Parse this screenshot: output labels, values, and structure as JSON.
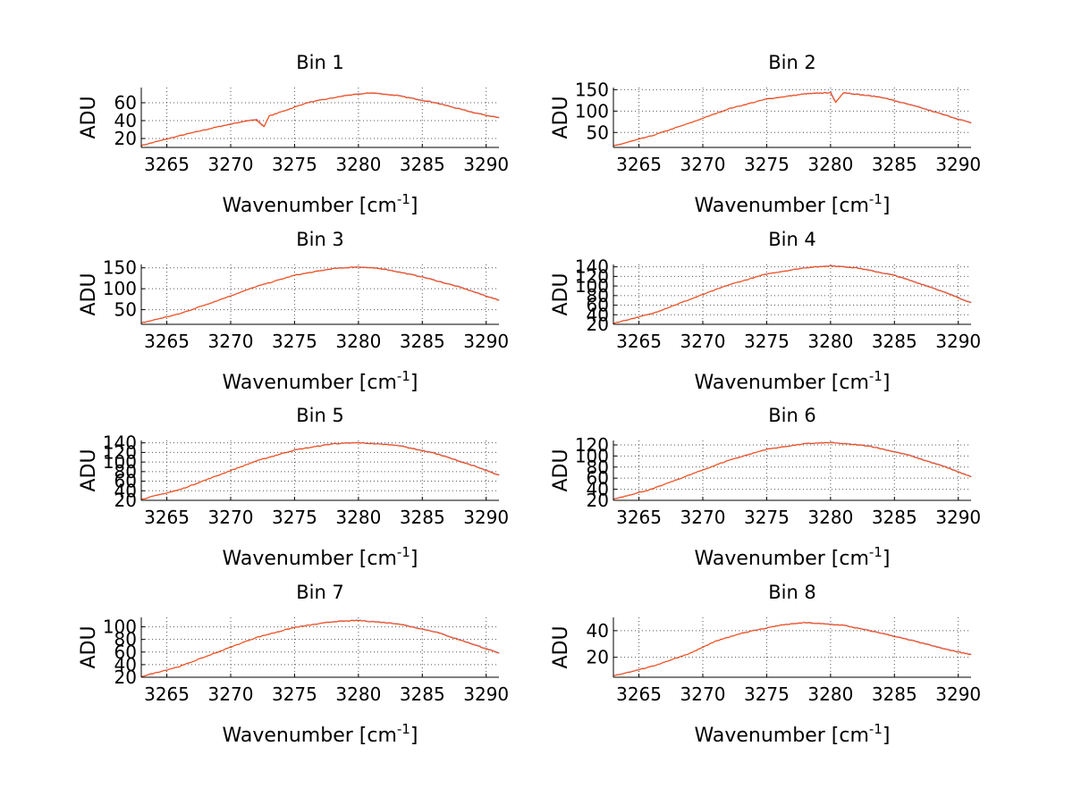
{
  "chart_data": [
    {
      "type": "line",
      "title": "Bin 1",
      "xlabel": "Wavenumber [cm",
      "xlabel_sup": "-1",
      "xlabel_end": "]",
      "ylabel": "ADU",
      "xlim": [
        3263,
        3291
      ],
      "ylim": [
        10,
        77
      ],
      "xticks": [
        3265,
        3270,
        3275,
        3280,
        3285,
        3290
      ],
      "yticks": [
        20,
        40,
        60
      ],
      "grid": true,
      "series": [
        {
          "color": "#ff4500",
          "x": [
            3263,
            3266,
            3269,
            3271,
            3272,
            3272.6,
            3273,
            3276,
            3279,
            3281,
            3283,
            3286,
            3289,
            3291
          ],
          "y": [
            12,
            23,
            33,
            39,
            41,
            33,
            45,
            60,
            68,
            71,
            68,
            60,
            49,
            43
          ]
        }
      ]
    },
    {
      "type": "line",
      "title": "Bin 2",
      "xlabel": "Wavenumber [cm",
      "xlabel_sup": "-1",
      "xlabel_end": "]",
      "ylabel": "ADU",
      "xlim": [
        3263,
        3291
      ],
      "ylim": [
        15,
        155
      ],
      "xticks": [
        3265,
        3270,
        3275,
        3280,
        3285,
        3290
      ],
      "yticks": [
        50,
        100,
        150
      ],
      "grid": true,
      "series": [
        {
          "color": "#ff4500",
          "x": [
            3263,
            3266,
            3269,
            3272,
            3275,
            3278,
            3280,
            3280.4,
            3281,
            3284,
            3287,
            3291
          ],
          "y": [
            18,
            42,
            72,
            105,
            128,
            140,
            143,
            120,
            143,
            132,
            108,
            72
          ]
        }
      ]
    },
    {
      "type": "line",
      "title": "Bin 3",
      "xlabel": "Wavenumber [cm",
      "xlabel_sup": "-1",
      "xlabel_end": "]",
      "ylabel": "ADU",
      "xlim": [
        3263,
        3291
      ],
      "ylim": [
        15,
        158
      ],
      "xticks": [
        3265,
        3270,
        3275,
        3280,
        3285,
        3290
      ],
      "yticks": [
        50,
        100,
        150
      ],
      "grid": true,
      "series": [
        {
          "color": "#ff4500",
          "x": [
            3263,
            3266,
            3269,
            3272,
            3275,
            3278,
            3280,
            3282,
            3285,
            3288,
            3291
          ],
          "y": [
            18,
            40,
            72,
            105,
            132,
            148,
            152,
            147,
            128,
            103,
            72
          ]
        }
      ]
    },
    {
      "type": "line",
      "title": "Bin 4",
      "xlabel": "Wavenumber [cm",
      "xlabel_sup": "-1",
      "xlabel_end": "]",
      "ylabel": "ADU",
      "xlim": [
        3263,
        3291
      ],
      "ylim": [
        20,
        145
      ],
      "xticks": [
        3265,
        3270,
        3275,
        3280,
        3285,
        3290
      ],
      "yticks": [
        20,
        40,
        60,
        80,
        100,
        120,
        140
      ],
      "ytick_labels": [
        "20",
        "40",
        "60",
        "80",
        "100",
        "120",
        "140"
      ],
      "grid": true,
      "series": [
        {
          "color": "#ff4500",
          "x": [
            3263,
            3266,
            3269,
            3272,
            3275,
            3278,
            3280,
            3282,
            3285,
            3288,
            3291
          ],
          "y": [
            22,
            42,
            72,
            102,
            125,
            138,
            142,
            138,
            122,
            96,
            65
          ]
        }
      ]
    },
    {
      "type": "line",
      "title": "Bin 5",
      "xlabel": "Wavenumber [cm",
      "xlabel_sup": "-1",
      "xlabel_end": "]",
      "ylabel": "ADU",
      "xlim": [
        3263,
        3291
      ],
      "ylim": [
        20,
        145
      ],
      "xticks": [
        3265,
        3270,
        3275,
        3280,
        3285,
        3290
      ],
      "yticks": [
        20,
        40,
        60,
        80,
        100,
        120,
        140
      ],
      "ytick_labels": [
        "20",
        "40",
        "60",
        "80",
        "100",
        "120",
        "140"
      ],
      "grid": true,
      "series": [
        {
          "color": "#ff4500",
          "x": [
            3263,
            3266,
            3269,
            3272,
            3275,
            3278,
            3280,
            3283,
            3286,
            3289,
            3291
          ],
          "y": [
            22,
            42,
            72,
            102,
            125,
            138,
            140,
            135,
            118,
            92,
            72
          ]
        }
      ]
    },
    {
      "type": "line",
      "title": "Bin 6",
      "xlabel": "Wavenumber [cm",
      "xlabel_sup": "-1",
      "xlabel_end": "]",
      "ylabel": "ADU",
      "xlim": [
        3263,
        3291
      ],
      "ylim": [
        20,
        128
      ],
      "xticks": [
        3265,
        3270,
        3275,
        3280,
        3285,
        3290
      ],
      "yticks": [
        20,
        40,
        60,
        80,
        100,
        120
      ],
      "ytick_labels": [
        "20",
        "40",
        "60",
        "80",
        "100",
        "120"
      ],
      "grid": true,
      "series": [
        {
          "color": "#ff4500",
          "x": [
            3263,
            3266,
            3269,
            3272,
            3275,
            3278,
            3280,
            3283,
            3286,
            3289,
            3291
          ],
          "y": [
            22,
            40,
            66,
            92,
            112,
            122,
            124,
            118,
            102,
            80,
            62
          ]
        }
      ]
    },
    {
      "type": "line",
      "title": "Bin 7",
      "xlabel": "Wavenumber [cm",
      "xlabel_sup": "-1",
      "xlabel_end": "]",
      "ylabel": "ADU",
      "xlim": [
        3263,
        3291
      ],
      "ylim": [
        20,
        115
      ],
      "xticks": [
        3265,
        3270,
        3275,
        3280,
        3285,
        3290
      ],
      "yticks": [
        20,
        40,
        60,
        80,
        100
      ],
      "ytick_labels": [
        "20",
        "40",
        "60",
        "80",
        "100"
      ],
      "grid": true,
      "series": [
        {
          "color": "#ff4500",
          "x": [
            3263,
            3266,
            3269,
            3272,
            3275,
            3278,
            3280,
            3283,
            3286,
            3289,
            3291
          ],
          "y": [
            21,
            37,
            60,
            83,
            99,
            108,
            110,
            105,
            92,
            72,
            58
          ]
        }
      ]
    },
    {
      "type": "line",
      "title": "Bin 8",
      "xlabel": "Wavenumber [cm",
      "xlabel_sup": "-1",
      "xlabel_end": "]",
      "ylabel": "ADU",
      "xlim": [
        3263,
        3291
      ],
      "ylim": [
        5,
        50
      ],
      "xticks": [
        3265,
        3270,
        3275,
        3280,
        3285,
        3290
      ],
      "yticks": [
        20,
        40
      ],
      "grid": true,
      "series": [
        {
          "color": "#ff4500",
          "x": [
            3263,
            3266,
            3269,
            3271,
            3273,
            3276,
            3278,
            3281,
            3284,
            3287,
            3289,
            3291
          ],
          "y": [
            6,
            13,
            23,
            32,
            38,
            44,
            46,
            44,
            38,
            31,
            26,
            22
          ]
        }
      ]
    }
  ]
}
